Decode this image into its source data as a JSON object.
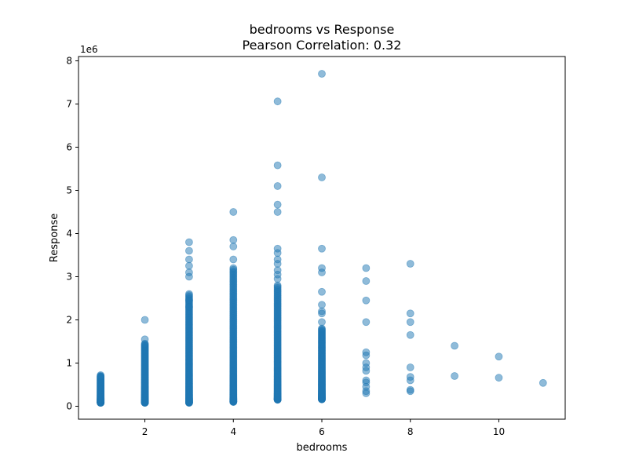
{
  "chart_data": {
    "type": "scatter",
    "title_line1": "bedrooms vs Response",
    "title_line2": "Pearson Correlation: 0.32",
    "xlabel": "bedrooms",
    "ylabel": "Response",
    "y_offset_label": "1e6",
    "xlim": [
      0.5,
      11.5
    ],
    "ylim": [
      -300000,
      8100000
    ],
    "x_ticks": [
      2,
      4,
      6,
      8,
      10
    ],
    "x_tick_labels": [
      "2",
      "4",
      "6",
      "8",
      "10"
    ],
    "y_ticks": [
      0,
      1000000,
      2000000,
      3000000,
      4000000,
      5000000,
      6000000,
      7000000,
      8000000
    ],
    "y_tick_labels": [
      "0",
      "1",
      "2",
      "3",
      "4",
      "5",
      "6",
      "7",
      "8"
    ],
    "grid": false,
    "marker_color": "#1f77b4",
    "marker_alpha": 0.5,
    "columns": [
      {
        "x": 1,
        "min": 80000,
        "max": 700000
      },
      {
        "x": 2,
        "min": 80000,
        "max": 1450000
      },
      {
        "x": 3,
        "min": 80000,
        "max": 2600000
      },
      {
        "x": 4,
        "min": 100000,
        "max": 3200000
      },
      {
        "x": 5,
        "min": 150000,
        "max": 2800000
      },
      {
        "x": 6,
        "min": 160000,
        "max": 1800000
      }
    ],
    "outliers": [
      [
        1,
        720000
      ],
      [
        2,
        2000000
      ],
      [
        2,
        1550000
      ],
      [
        3,
        3800000
      ],
      [
        3,
        3600000
      ],
      [
        3,
        3400000
      ],
      [
        3,
        3250000
      ],
      [
        3,
        3100000
      ],
      [
        3,
        3000000
      ],
      [
        3,
        2450000
      ],
      [
        3,
        2300000
      ],
      [
        4,
        4500000
      ],
      [
        4,
        3850000
      ],
      [
        4,
        3700000
      ],
      [
        4,
        3400000
      ],
      [
        5,
        7060000
      ],
      [
        5,
        5580000
      ],
      [
        5,
        5100000
      ],
      [
        5,
        4670000
      ],
      [
        5,
        4500000
      ],
      [
        5,
        3650000
      ],
      [
        5,
        3550000
      ],
      [
        5,
        3400000
      ],
      [
        5,
        3300000
      ],
      [
        5,
        3150000
      ],
      [
        5,
        3050000
      ],
      [
        5,
        2950000
      ],
      [
        6,
        7700000
      ],
      [
        6,
        5300000
      ],
      [
        6,
        3650000
      ],
      [
        6,
        3200000
      ],
      [
        6,
        3100000
      ],
      [
        6,
        2650000
      ],
      [
        6,
        2350000
      ],
      [
        6,
        2200000
      ],
      [
        6,
        2150000
      ],
      [
        6,
        1950000
      ],
      [
        7,
        3200000
      ],
      [
        7,
        2900000
      ],
      [
        7,
        2450000
      ],
      [
        7,
        1950000
      ],
      [
        7,
        1250000
      ],
      [
        7,
        1180000
      ],
      [
        7,
        1000000
      ],
      [
        7,
        900000
      ],
      [
        7,
        820000
      ],
      [
        7,
        600000
      ],
      [
        7,
        550000
      ],
      [
        7,
        450000
      ],
      [
        7,
        350000
      ],
      [
        7,
        300000
      ],
      [
        8,
        3300000
      ],
      [
        8,
        2150000
      ],
      [
        8,
        1950000
      ],
      [
        8,
        1650000
      ],
      [
        8,
        900000
      ],
      [
        8,
        680000
      ],
      [
        8,
        600000
      ],
      [
        8,
        380000
      ],
      [
        8,
        350000
      ],
      [
        9,
        1400000
      ],
      [
        9,
        700000
      ],
      [
        10,
        1150000
      ],
      [
        10,
        660000
      ],
      [
        11,
        540000
      ]
    ]
  }
}
